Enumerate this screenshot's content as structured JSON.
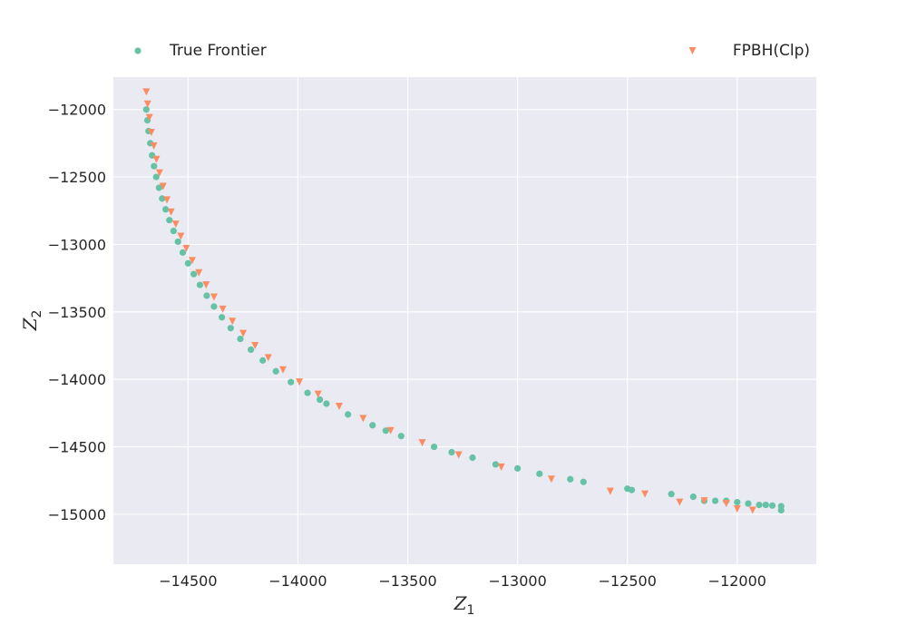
{
  "chart_data": {
    "type": "scatter",
    "title": "",
    "xlabel": "Z",
    "xlabel_subscript": "1",
    "ylabel": "Z",
    "ylabel_subscript": "2",
    "xlim": [
      -14840,
      -11640
    ],
    "ylim": [
      -15370,
      -11760
    ],
    "x_ticks": [
      -14500,
      -14000,
      -13500,
      -13000,
      -12500,
      -12000
    ],
    "x_tick_labels": [
      "−14500",
      "−14000",
      "−13500",
      "−13000",
      "−12500",
      "−12000"
    ],
    "y_ticks": [
      -12000,
      -12500,
      -13000,
      -13500,
      -14000,
      -14500,
      -15000
    ],
    "y_tick_labels": [
      "−12000",
      "−12500",
      "−13000",
      "−13500",
      "−14000",
      "−14500",
      "−15000"
    ],
    "grid": true,
    "background": "#eaeaf2",
    "legend_position": "top, outside plot area",
    "series": [
      {
        "name": "True Frontier",
        "marker": "circle",
        "color": "#66c2a5",
        "points": [
          [
            -14690,
            -12000
          ],
          [
            -14685,
            -12080
          ],
          [
            -14680,
            -12160
          ],
          [
            -14672,
            -12250
          ],
          [
            -14664,
            -12340
          ],
          [
            -14655,
            -12420
          ],
          [
            -14645,
            -12500
          ],
          [
            -14632,
            -12580
          ],
          [
            -14618,
            -12660
          ],
          [
            -14602,
            -12740
          ],
          [
            -14585,
            -12820
          ],
          [
            -14566,
            -12900
          ],
          [
            -14546,
            -12980
          ],
          [
            -14524,
            -13060
          ],
          [
            -14500,
            -13140
          ],
          [
            -14474,
            -13220
          ],
          [
            -14446,
            -13300
          ],
          [
            -14415,
            -13380
          ],
          [
            -14382,
            -13460
          ],
          [
            -14346,
            -13540
          ],
          [
            -14306,
            -13620
          ],
          [
            -14262,
            -13700
          ],
          [
            -14214,
            -13780
          ],
          [
            -14160,
            -13860
          ],
          [
            -14100,
            -13940
          ],
          [
            -14032,
            -14020
          ],
          [
            -13956,
            -14100
          ],
          [
            -13870,
            -14180
          ],
          [
            -13772,
            -14260
          ],
          [
            -13660,
            -14340
          ],
          [
            -13530,
            -14420
          ],
          [
            -13380,
            -14500
          ],
          [
            -13205,
            -14580
          ],
          [
            -13000,
            -14660
          ],
          [
            -12760,
            -14740
          ],
          [
            -12480,
            -14820
          ],
          [
            -12150,
            -14900
          ],
          [
            -11800,
            -14970
          ],
          [
            -13900,
            -14150
          ],
          [
            -13600,
            -14380
          ],
          [
            -13300,
            -14540
          ],
          [
            -13100,
            -14630
          ],
          [
            -12900,
            -14700
          ],
          [
            -12700,
            -14760
          ],
          [
            -12500,
            -14810
          ],
          [
            -12300,
            -14850
          ],
          [
            -12200,
            -14870
          ],
          [
            -12100,
            -14900
          ],
          [
            -12050,
            -14900
          ],
          [
            -12000,
            -14910
          ],
          [
            -11950,
            -14920
          ],
          [
            -11900,
            -14930
          ],
          [
            -11870,
            -14930
          ],
          [
            -11840,
            -14935
          ],
          [
            -11800,
            -14940
          ]
        ]
      },
      {
        "name": "FPBH(Clp)",
        "marker": "triangle-down",
        "color": "#fc8d62",
        "points": [
          [
            -14690,
            -11870
          ],
          [
            -14684,
            -11960
          ],
          [
            -14676,
            -12060
          ],
          [
            -14667,
            -12170
          ],
          [
            -14656,
            -12270
          ],
          [
            -14644,
            -12370
          ],
          [
            -14630,
            -12470
          ],
          [
            -14614,
            -12570
          ],
          [
            -14596,
            -12670
          ],
          [
            -14577,
            -12760
          ],
          [
            -14556,
            -12850
          ],
          [
            -14533,
            -12940
          ],
          [
            -14508,
            -13030
          ],
          [
            -14481,
            -13120
          ],
          [
            -14451,
            -13210
          ],
          [
            -14418,
            -13300
          ],
          [
            -14382,
            -13390
          ],
          [
            -14342,
            -13480
          ],
          [
            -14298,
            -13570
          ],
          [
            -14249,
            -13660
          ],
          [
            -14195,
            -13750
          ],
          [
            -14135,
            -13840
          ],
          [
            -14068,
            -13930
          ],
          [
            -13993,
            -14020
          ],
          [
            -13908,
            -14110
          ],
          [
            -13812,
            -14200
          ],
          [
            -13703,
            -14290
          ],
          [
            -13578,
            -14380
          ],
          [
            -13434,
            -14470
          ],
          [
            -13268,
            -14560
          ],
          [
            -13074,
            -14650
          ],
          [
            -12846,
            -14740
          ],
          [
            -12578,
            -14830
          ],
          [
            -12262,
            -14910
          ],
          [
            -12000,
            -14960
          ],
          [
            -11930,
            -14970
          ],
          [
            -12420,
            -14850
          ],
          [
            -12150,
            -14900
          ],
          [
            -12050,
            -14920
          ]
        ]
      }
    ]
  }
}
